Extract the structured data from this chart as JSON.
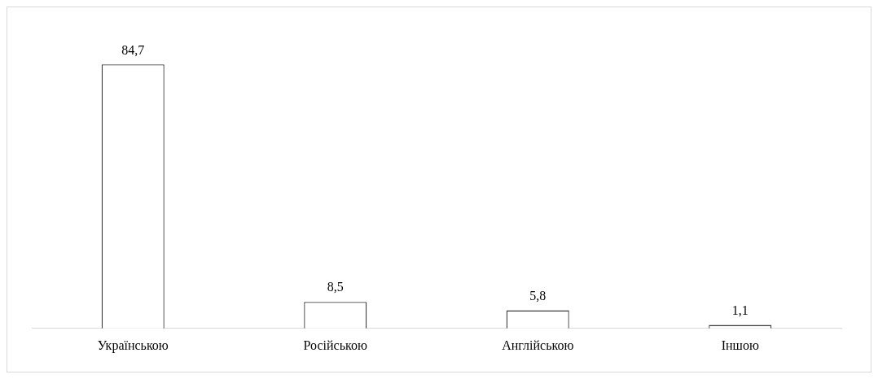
{
  "chart_data": {
    "type": "bar",
    "categories": [
      "Українською",
      "Російською",
      "Англійською",
      "Іншою"
    ],
    "values": [
      84.7,
      8.5,
      5.8,
      1.1
    ],
    "value_labels": [
      "84,7",
      "8,5",
      "5,8",
      "1,1"
    ],
    "color": "#ffffff"
  }
}
